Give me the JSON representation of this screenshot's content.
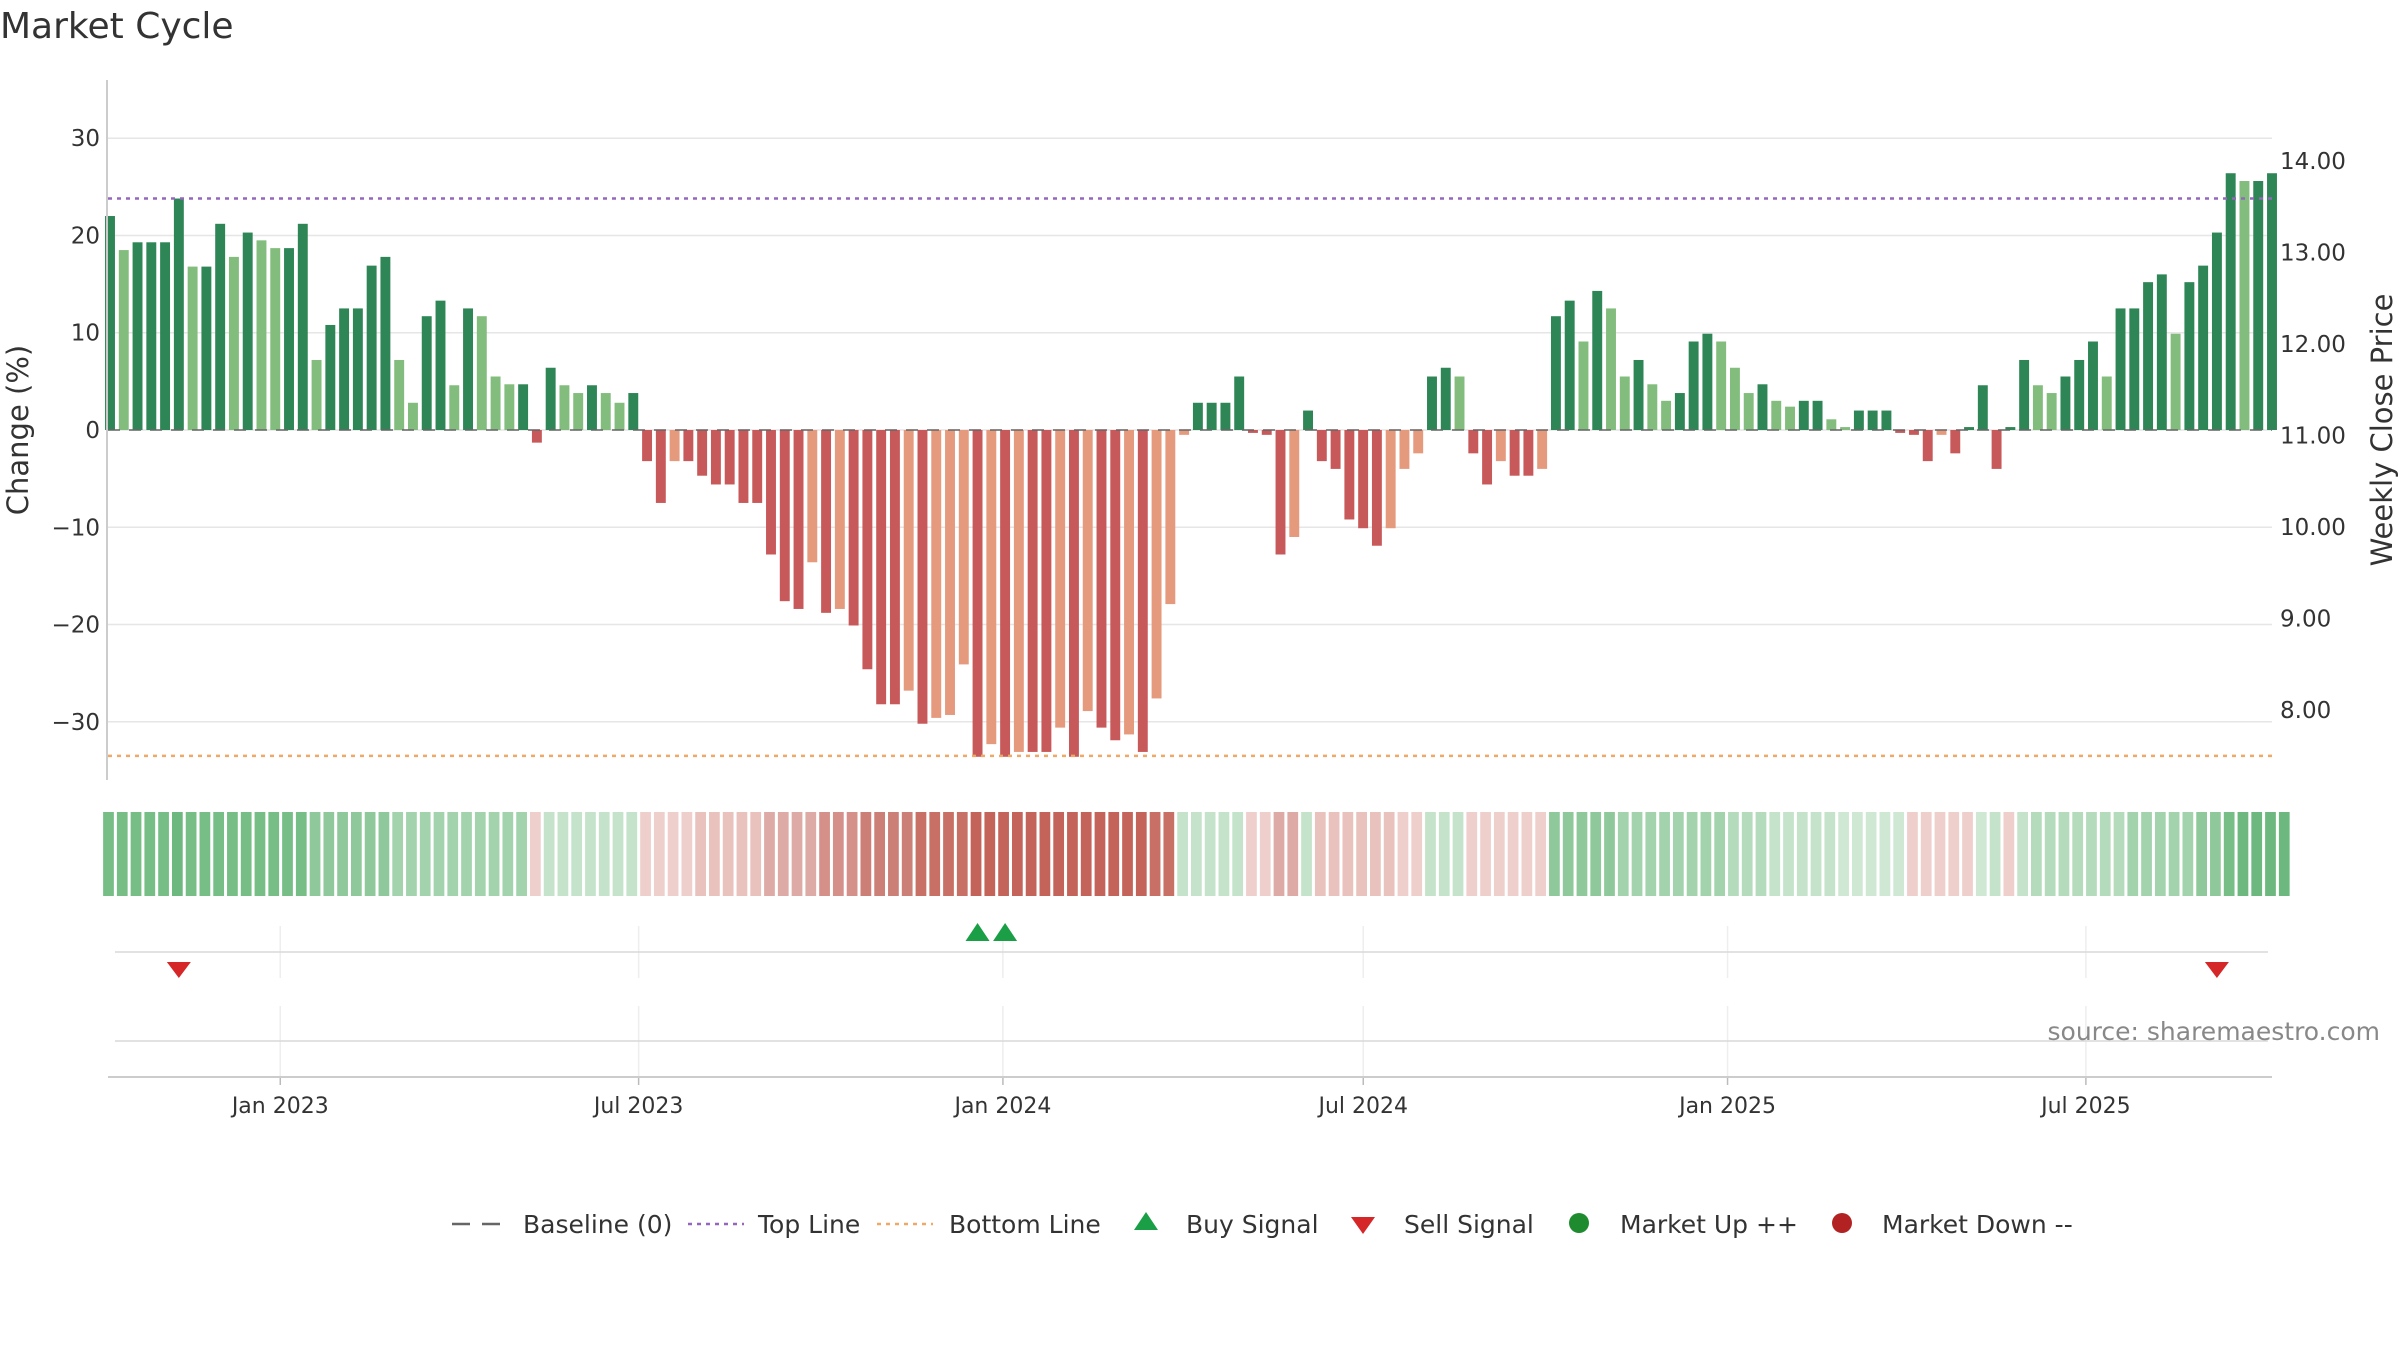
{
  "chart_data": {
    "type": "bar",
    "title": "Market Cycle",
    "ylabel_left": "Change (%)",
    "ylabel_right": "Weekly Close Price",
    "ylim": [
      -36.5,
      36.5
    ],
    "yticks_left": [
      30,
      20,
      10,
      0,
      -10,
      -20,
      -30
    ],
    "yticks_left_labels": [
      "30",
      "20",
      "10",
      "0",
      "−10",
      "−20",
      "−30"
    ],
    "yticks_right_values": [
      14.0,
      13.0,
      12.0,
      11.0,
      10.0,
      9.0,
      8.0
    ],
    "yticks_right_labels": [
      "14.00",
      "13.00",
      "12.00",
      "11.00",
      "10.00",
      "9.00",
      "8.00"
    ],
    "top_line": 23.8,
    "bottom_line": -33.5,
    "baseline": 0,
    "x_start": "2022-10-07",
    "x_end": "2025-10-03",
    "date_ticks": [
      {
        "date": "2023-01-01",
        "label": "Jan 2023"
      },
      {
        "date": "2023-07-01",
        "label": "Jul 2023"
      },
      {
        "date": "2024-01-01",
        "label": "Jan 2024"
      },
      {
        "date": "2024-07-01",
        "label": "Jul 2024"
      },
      {
        "date": "2025-01-01",
        "label": "Jan 2025"
      },
      {
        "date": "2025-07-01",
        "label": "Jul 2025"
      }
    ],
    "values": [
      22,
      18.5,
      19.3,
      19.3,
      19.3,
      23.8,
      16.8,
      16.8,
      21.2,
      17.8,
      20.3,
      19.5,
      18.7,
      18.7,
      21.2,
      7.2,
      10.8,
      12.5,
      12.5,
      16.9,
      17.8,
      7.2,
      2.8,
      11.7,
      13.3,
      4.6,
      12.5,
      11.7,
      5.5,
      4.7,
      4.7,
      -1.3,
      6.4,
      4.6,
      3.8,
      4.6,
      3.8,
      2.8,
      3.8,
      -3.2,
      -7.5,
      -3.2,
      -3.2,
      -4.7,
      -5.6,
      -5.6,
      -7.5,
      -7.5,
      -12.8,
      -17.6,
      -18.4,
      -13.6,
      -18.8,
      -18.4,
      -20.1,
      -24.6,
      -28.2,
      -28.2,
      -26.8,
      -30.2,
      -29.6,
      -29.3,
      -24.1,
      -33.6,
      -32.3,
      -33.6,
      -33.1,
      -33.1,
      -33.1,
      -30.6,
      -33.6,
      -28.9,
      -30.6,
      -31.9,
      -31.3,
      -33.1,
      -27.6,
      -17.9,
      -0.5,
      2.8,
      2.8,
      2.8,
      5.5,
      -0.3,
      -0.5,
      -12.8,
      -11,
      2,
      -3.2,
      -4,
      -9.2,
      -10.1,
      -11.9,
      -10.1,
      -4,
      -2.4,
      5.5,
      6.4,
      5.5,
      -2.4,
      -5.6,
      -3.2,
      -4.7,
      -4.7,
      -4,
      11.7,
      13.3,
      9.1,
      14.3,
      12.5,
      5.5,
      7.2,
      4.7,
      3,
      3.8,
      9.1,
      9.9,
      9.1,
      6.4,
      3.8,
      4.7,
      3,
      2.4,
      3,
      3,
      1.1,
      0.3,
      2,
      2,
      2,
      -0.3,
      -0.5,
      -3.2,
      -0.5,
      -2.4,
      0.3,
      4.6,
      -4,
      0.3,
      7.2,
      4.6,
      3.8,
      5.5,
      7.2,
      9.1,
      5.5,
      12.5,
      12.5,
      15.2,
      16,
      9.9,
      15.2,
      16.9,
      20.3,
      26.4,
      25.6,
      25.6,
      26.4
    ],
    "cycle_strip_colors": [
      "#76be86",
      "#76be86",
      "#76be86",
      "#76be86",
      "#76be86",
      "#6cb87e",
      "#76be86",
      "#76be86",
      "#76be86",
      "#76be86",
      "#76be86",
      "#76be86",
      "#76be86",
      "#76be86",
      "#76be86",
      "#8fc99b",
      "#8fc99b",
      "#8fc99b",
      "#8fc99b",
      "#8fc99b",
      "#8fc99b",
      "#a3d3ad",
      "#a3d3ad",
      "#a3d3ad",
      "#a3d3ad",
      "#a3d3ad",
      "#a3d3ad",
      "#a3d3ad",
      "#a3d3ad",
      "#a3d3ad",
      "#a3d3ad",
      "#efcfcc",
      "#c4e3ca",
      "#c4e3ca",
      "#c4e3ca",
      "#c4e3ca",
      "#c4e3ca",
      "#c4e3ca",
      "#c4e3ca",
      "#efcfcc",
      "#efcfcc",
      "#efcfcc",
      "#efcfcc",
      "#e9c1bd",
      "#e9c1bd",
      "#e9c1bd",
      "#e9c1bd",
      "#e9c1bd",
      "#deaaa5",
      "#deaaa5",
      "#deaaa5",
      "#deaaa5",
      "#d49089",
      "#d49089",
      "#d49089",
      "#cc7f77",
      "#cc7f77",
      "#cc7f77",
      "#cc7f77",
      "#c86f66",
      "#c86f66",
      "#c86f66",
      "#c86f66",
      "#c4635a",
      "#c4635a",
      "#c4635a",
      "#c4635a",
      "#c4635a",
      "#c4635a",
      "#c4635a",
      "#c4635a",
      "#c4635a",
      "#c4635a",
      "#c4635a",
      "#c4635a",
      "#c4635a",
      "#c86f66",
      "#c86f66",
      "#c4e3ca",
      "#c4e3ca",
      "#c4e3ca",
      "#c4e3ca",
      "#c4e3ca",
      "#efcfcc",
      "#efcfcc",
      "#deaaa5",
      "#deaaa5",
      "#c4e3ca",
      "#e9c1bd",
      "#e9c1bd",
      "#e9c1bd",
      "#e9c1bd",
      "#e9c1bd",
      "#e9c1bd",
      "#efcfcc",
      "#efcfcc",
      "#c4e3ca",
      "#c4e3ca",
      "#c4e3ca",
      "#efcfcc",
      "#efcfcc",
      "#efcfcc",
      "#efcfcc",
      "#efcfcc",
      "#efcfcc",
      "#8fc99b",
      "#8fc99b",
      "#8fc99b",
      "#8fc99b",
      "#8fc99b",
      "#a3d3ad",
      "#a3d3ad",
      "#a3d3ad",
      "#a3d3ad",
      "#a3d3ad",
      "#a3d3ad",
      "#a3d3ad",
      "#a3d3ad",
      "#b4dbbc",
      "#b4dbbc",
      "#b4dbbc",
      "#c4e3ca",
      "#c4e3ca",
      "#c4e3ca",
      "#c4e3ca",
      "#c4e3ca",
      "#cfe8d4",
      "#cfe8d4",
      "#cfe8d4",
      "#cfe8d4",
      "#cfe8d4",
      "#efcfcc",
      "#efcfcc",
      "#efcfcc",
      "#efcfcc",
      "#efcfcc",
      "#cfe8d4",
      "#c4e3ca",
      "#efcfcc",
      "#c4e3ca",
      "#b4dbbc",
      "#b4dbbc",
      "#b4dbbc",
      "#b4dbbc",
      "#b4dbbc",
      "#b4dbbc",
      "#b4dbbc",
      "#a3d3ad",
      "#a3d3ad",
      "#a3d3ad",
      "#a3d3ad",
      "#a3d3ad",
      "#8fc99b",
      "#8fc99b",
      "#76be86",
      "#6cb87e",
      "#6cb87e",
      "#6cb87e",
      "#6cb87e"
    ],
    "buy_signals": [
      63,
      65
    ],
    "sell_signals": [
      5,
      153
    ],
    "series": [
      {
        "name": "Baseline (0)",
        "color": "#666666",
        "style": "dashed"
      },
      {
        "name": "Top Line",
        "color": "#9467bd",
        "style": "dotted"
      },
      {
        "name": "Bottom Line",
        "color": "#f0a868",
        "style": "dotted"
      },
      {
        "name": "Buy Signal",
        "color": "#1a9e46",
        "marker": "triangle-up"
      },
      {
        "name": "Sell Signal",
        "color": "#d62728",
        "marker": "triangle-down"
      },
      {
        "name": "Market Up ++",
        "color": "#1e8b2e",
        "marker": "circle"
      },
      {
        "name": "Market Down --",
        "color": "#b22222",
        "marker": "circle"
      }
    ],
    "colors": {
      "strong_up": "#2e8555",
      "weak_up": "#82bd7d",
      "strong_down": "#c8595a",
      "weak_down": "#e59a7e",
      "grid": "#e6e6e6",
      "axis": "#cccccc"
    },
    "legend_position": "bottom-center",
    "grid": true,
    "source": "source: sharemaestro.com"
  }
}
